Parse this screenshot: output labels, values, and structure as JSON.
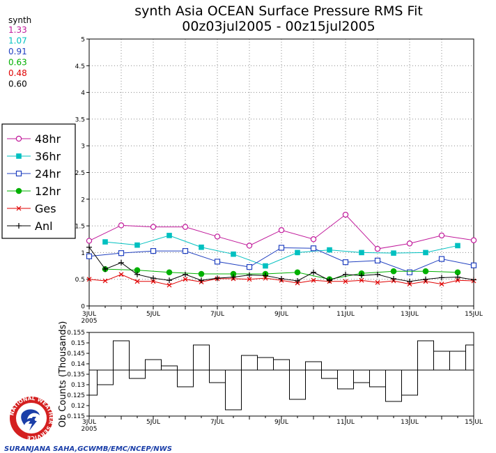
{
  "header": {
    "title_line1": "synth Asia OCEAN Surface Pressure RMS Fit",
    "title_line2": "00z03jul2005 - 00z15jul2005"
  },
  "means": {
    "label": "synth",
    "items": [
      {
        "value": "1.33",
        "color": "#c0189a"
      },
      {
        "value": "1.07",
        "color": "#00c0c0"
      },
      {
        "value": "0.91",
        "color": "#2040c0"
      },
      {
        "value": "0.63",
        "color": "#00b000"
      },
      {
        "value": "0.48",
        "color": "#e00000"
      },
      {
        "value": "0.60",
        "color": "#000000"
      }
    ]
  },
  "footer": {
    "credit": "SURANJANA SAHA,GCWMB/EMC/NCEP/NWS"
  },
  "logo": {
    "text": "NATIONAL WEATHER SERVICE"
  },
  "chart_data": [
    {
      "type": "line",
      "title": "synth Asia OCEAN Surface Pressure RMS Fit",
      "ylim": [
        0,
        5
      ],
      "yticks": [
        "0",
        "0.5",
        "1",
        "1.5",
        "2",
        "2.5",
        "3",
        "3.5",
        "4",
        "4.5",
        "5"
      ],
      "xticks": [
        "3JUL\n2005",
        "5JUL",
        "7JUL",
        "9JUL",
        "11JUL",
        "13JUL",
        "15JUL"
      ],
      "grid": true,
      "legend_position": "left",
      "series": [
        {
          "name": "48hr",
          "color": "#c0189a",
          "marker": "open-circle",
          "values": [
            1.22,
            null,
            1.51,
            null,
            1.48,
            null,
            1.48,
            null,
            1.3,
            null,
            1.13,
            null,
            1.42,
            null,
            1.25,
            null,
            1.71,
            null,
            1.07,
            null,
            1.17,
            null,
            1.32,
            null,
            1.23
          ]
        },
        {
          "name": "36hr",
          "color": "#00c0c0",
          "marker": "filled-square",
          "values": [
            null,
            1.2,
            null,
            1.14,
            null,
            1.32,
            null,
            1.1,
            null,
            0.97,
            null,
            0.75,
            null,
            1.0,
            null,
            1.05,
            null,
            1.0,
            null,
            0.99,
            null,
            1.0,
            null,
            1.13,
            null
          ]
        },
        {
          "name": "24hr",
          "color": "#2040c0",
          "marker": "open-square",
          "values": [
            0.93,
            null,
            0.99,
            null,
            1.03,
            null,
            1.03,
            null,
            0.83,
            null,
            0.73,
            null,
            1.09,
            null,
            1.08,
            null,
            0.82,
            null,
            0.85,
            null,
            0.63,
            null,
            0.88,
            null,
            0.76
          ]
        },
        {
          "name": "12hr",
          "color": "#00b000",
          "marker": "filled-circle",
          "values": [
            null,
            0.69,
            null,
            0.67,
            null,
            0.63,
            null,
            0.6,
            null,
            0.6,
            null,
            0.6,
            null,
            0.63,
            null,
            0.5,
            null,
            0.61,
            null,
            0.65,
            null,
            0.65,
            null,
            0.63,
            null
          ]
        },
        {
          "name": "Ges",
          "color": "#e00000",
          "marker": "x",
          "values": [
            0.5,
            0.47,
            0.59,
            0.46,
            0.46,
            0.39,
            0.5,
            0.45,
            0.51,
            0.51,
            0.5,
            0.52,
            0.48,
            0.43,
            0.48,
            0.46,
            0.46,
            0.48,
            0.44,
            0.47,
            0.41,
            0.46,
            0.41,
            0.48,
            0.47
          ]
        },
        {
          "name": "Anl",
          "color": "#000000",
          "marker": "plus",
          "values": [
            1.1,
            0.69,
            0.81,
            0.59,
            0.52,
            0.48,
            0.59,
            0.48,
            0.52,
            0.54,
            0.58,
            0.57,
            0.51,
            0.47,
            0.63,
            0.48,
            0.59,
            0.57,
            0.59,
            0.51,
            0.46,
            0.5,
            0.53,
            0.54,
            0.49
          ]
        }
      ]
    },
    {
      "type": "bar",
      "ylabel": "Ob Counts (Thousands)",
      "ylim": [
        0.115,
        0.155
      ],
      "yticks": [
        "0.115",
        "0.12",
        "0.125",
        "0.13",
        "0.135",
        "0.14",
        "0.145",
        "0.15",
        "0.155"
      ],
      "xticks": [
        "3JUL\n2005",
        "5JUL",
        "7JUL",
        "9JUL",
        "11JUL",
        "13JUL",
        "15JUL"
      ],
      "reference": 0.137,
      "values": [
        0.125,
        0.13,
        0.151,
        0.133,
        0.142,
        0.139,
        0.129,
        0.149,
        0.131,
        0.118,
        0.144,
        0.143,
        0.142,
        0.123,
        0.141,
        0.133,
        0.128,
        0.131,
        0.129,
        0.122,
        0.125,
        0.151,
        0.146,
        0.146,
        0.149
      ]
    }
  ]
}
